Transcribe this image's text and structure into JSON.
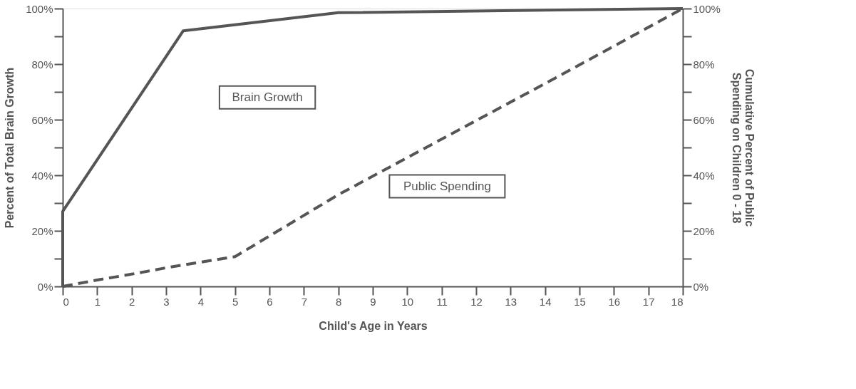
{
  "chart_data": {
    "type": "line",
    "xlabel": "Child's Age in Years",
    "ylabel": "Percent of Total Brain Growth",
    "y2label": "Cumulative Percent of Public Spending on Children 0 - 18",
    "xlim": [
      0,
      18
    ],
    "xticks": [
      0,
      1,
      2,
      3,
      4,
      5,
      6,
      7,
      8,
      9,
      10,
      11,
      12,
      13,
      14,
      15,
      16,
      17,
      18
    ],
    "ylim": [
      0,
      100
    ],
    "yticks": [
      {
        "value": 0,
        "label": "0%"
      },
      {
        "value": 10,
        "label": null
      },
      {
        "value": 20,
        "label": "20%"
      },
      {
        "value": 30,
        "label": null
      },
      {
        "value": 40,
        "label": "40%"
      },
      {
        "value": 50,
        "label": null
      },
      {
        "value": 60,
        "label": "60%"
      },
      {
        "value": 70,
        "label": null
      },
      {
        "value": 80,
        "label": "80%"
      },
      {
        "value": 90,
        "label": null
      },
      {
        "value": 100,
        "label": "100%"
      }
    ],
    "y2lim": [
      0,
      100
    ],
    "y2ticks": [
      {
        "value": 0,
        "label": "0%"
      },
      {
        "value": 10,
        "label": null
      },
      {
        "value": 20,
        "label": "20%"
      },
      {
        "value": 30,
        "label": null
      },
      {
        "value": 40,
        "label": "40%"
      },
      {
        "value": 50,
        "label": null
      },
      {
        "value": 60,
        "label": "60%"
      },
      {
        "value": 70,
        "label": null
      },
      {
        "value": 80,
        "label": "80%"
      },
      {
        "value": 90,
        "label": null
      },
      {
        "value": 100,
        "label": "100%"
      }
    ],
    "grid": false,
    "series": [
      {
        "name": "Brain Growth",
        "color": "#555555",
        "line_style": "solid",
        "x": [
          0,
          0,
          3.5,
          8,
          18
        ],
        "values": [
          0,
          27,
          92,
          98.5,
          100
        ]
      },
      {
        "name": "Public Spending",
        "color": "#555555",
        "line_style": "dashed",
        "axis": "y2",
        "x": [
          0,
          1,
          2,
          3,
          5,
          8,
          14.3,
          18
        ],
        "values": [
          0,
          2.3,
          4.4,
          6.7,
          10.7,
          33,
          75,
          100
        ]
      }
    ]
  }
}
